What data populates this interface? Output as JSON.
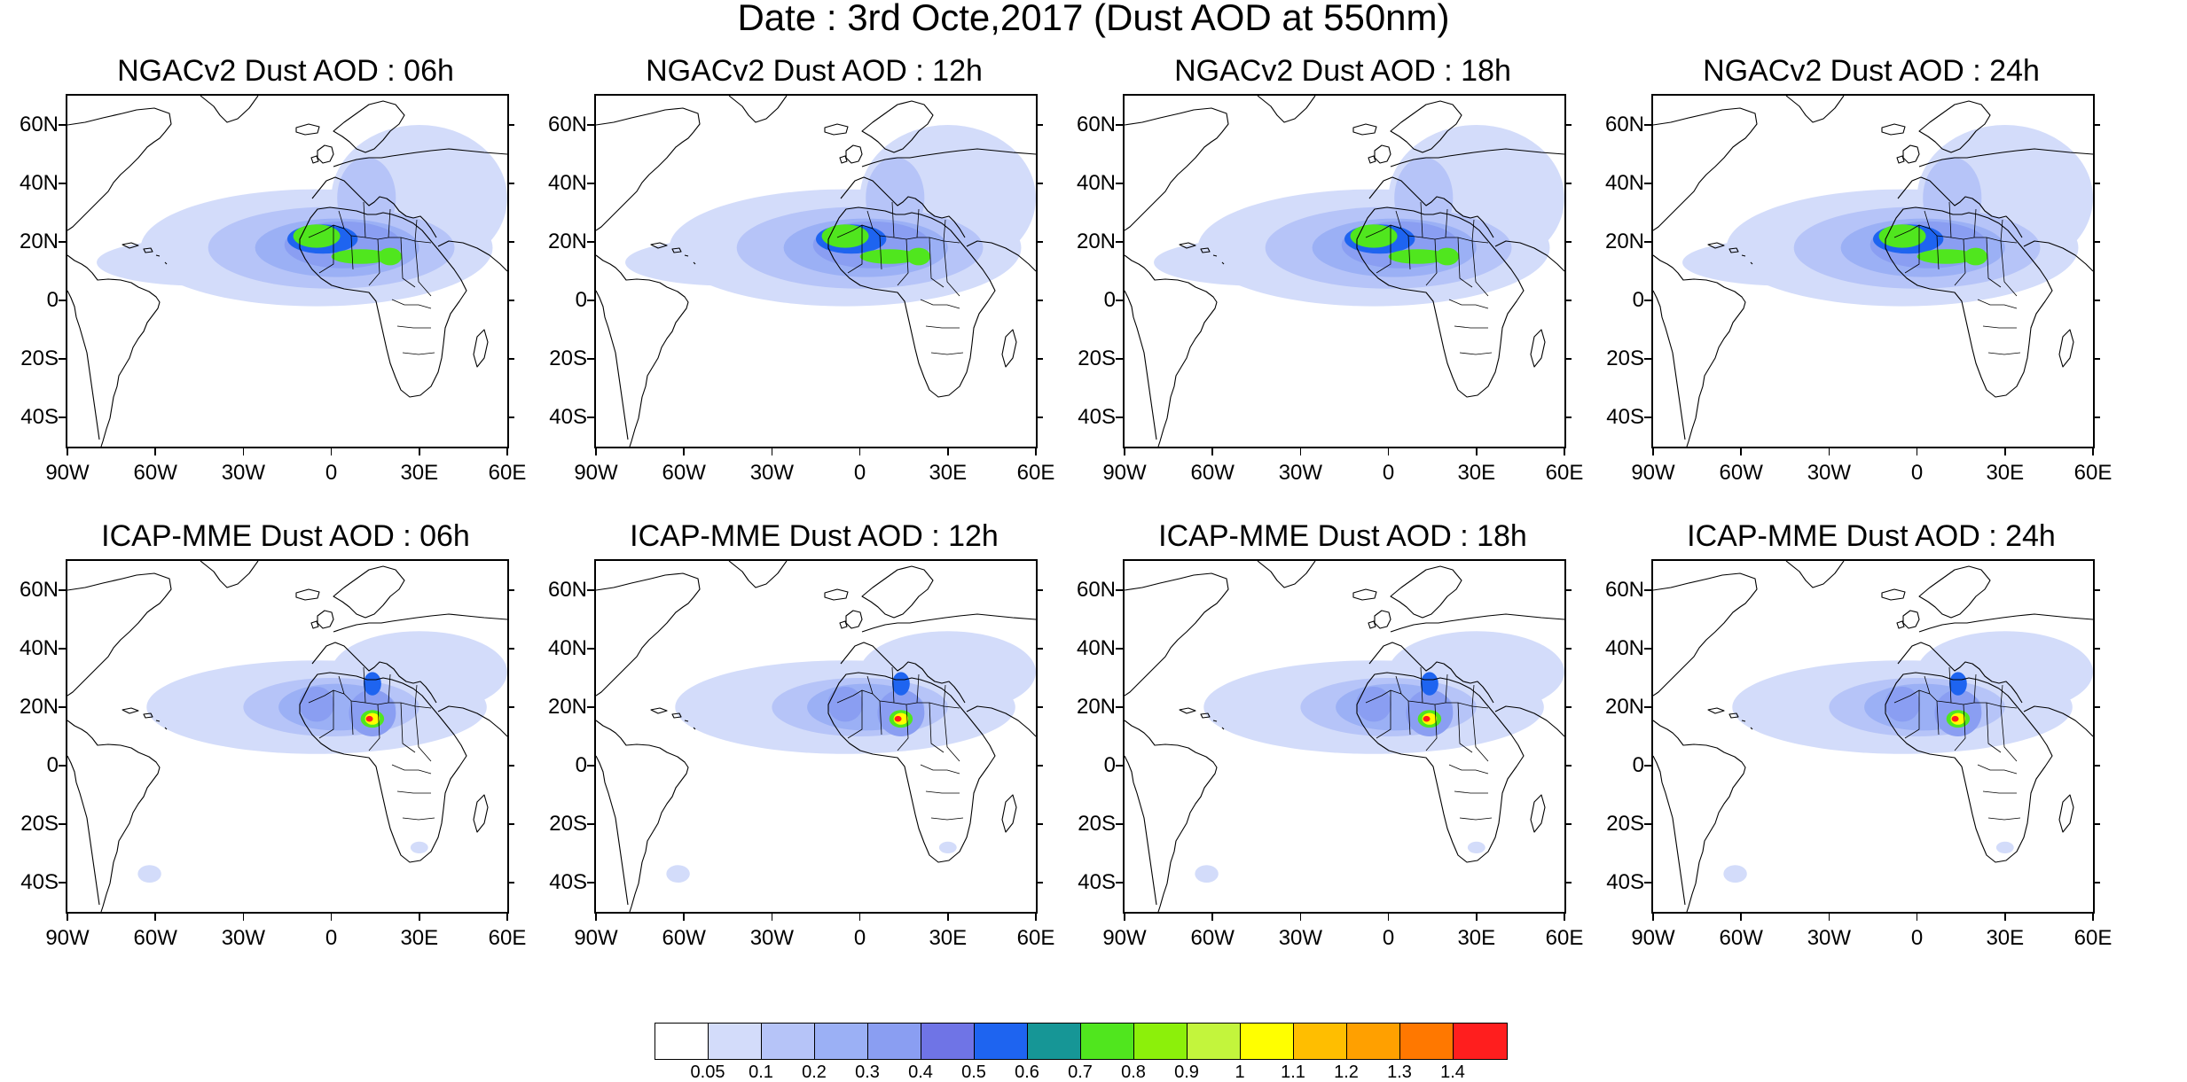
{
  "title": "Date : 3rd Octe,2017 (Dust AOD at 550nm)",
  "panels": [
    {
      "title": "NGACv2 Dust AOD : 06h",
      "model": "NGACv2",
      "hour": "06h"
    },
    {
      "title": "NGACv2 Dust AOD : 12h",
      "model": "NGACv2",
      "hour": "12h"
    },
    {
      "title": "NGACv2 Dust AOD : 18h",
      "model": "NGACv2",
      "hour": "18h"
    },
    {
      "title": "NGACv2 Dust AOD : 24h",
      "model": "NGACv2",
      "hour": "24h"
    },
    {
      "title": "ICAP-MME Dust AOD : 06h",
      "model": "ICAP-MME",
      "hour": "06h"
    },
    {
      "title": "ICAP-MME Dust AOD : 12h",
      "model": "ICAP-MME",
      "hour": "12h"
    },
    {
      "title": "ICAP-MME Dust AOD : 18h",
      "model": "ICAP-MME",
      "hour": "18h"
    },
    {
      "title": "ICAP-MME Dust AOD : 24h",
      "model": "ICAP-MME",
      "hour": "24h"
    }
  ],
  "axes": {
    "lat_ticks": [
      "60N",
      "40N",
      "20N",
      "0",
      "20S",
      "40S"
    ],
    "lon_ticks": [
      "90W",
      "60W",
      "30W",
      "0",
      "30E",
      "60E"
    ],
    "lon_range": [
      -90,
      60
    ],
    "lat_range": [
      -50,
      70
    ]
  },
  "colorbar": {
    "labels": [
      "0.05",
      "0.1",
      "0.2",
      "0.3",
      "0.4",
      "0.5",
      "0.6",
      "0.7",
      "0.8",
      "0.9",
      "1",
      "1.1",
      "1.2",
      "1.3",
      "1.4"
    ],
    "colors": [
      "#ffffff",
      "#d3dcfa",
      "#b6c4f8",
      "#9bb0f5",
      "#8a9ef2",
      "#6f74e6",
      "#1e64f0",
      "#169696",
      "#50e61e",
      "#8cf00a",
      "#c3f53c",
      "#ffff00",
      "#ffbe00",
      "#ffa000",
      "#ff7800",
      "#ff1e1e"
    ]
  }
}
